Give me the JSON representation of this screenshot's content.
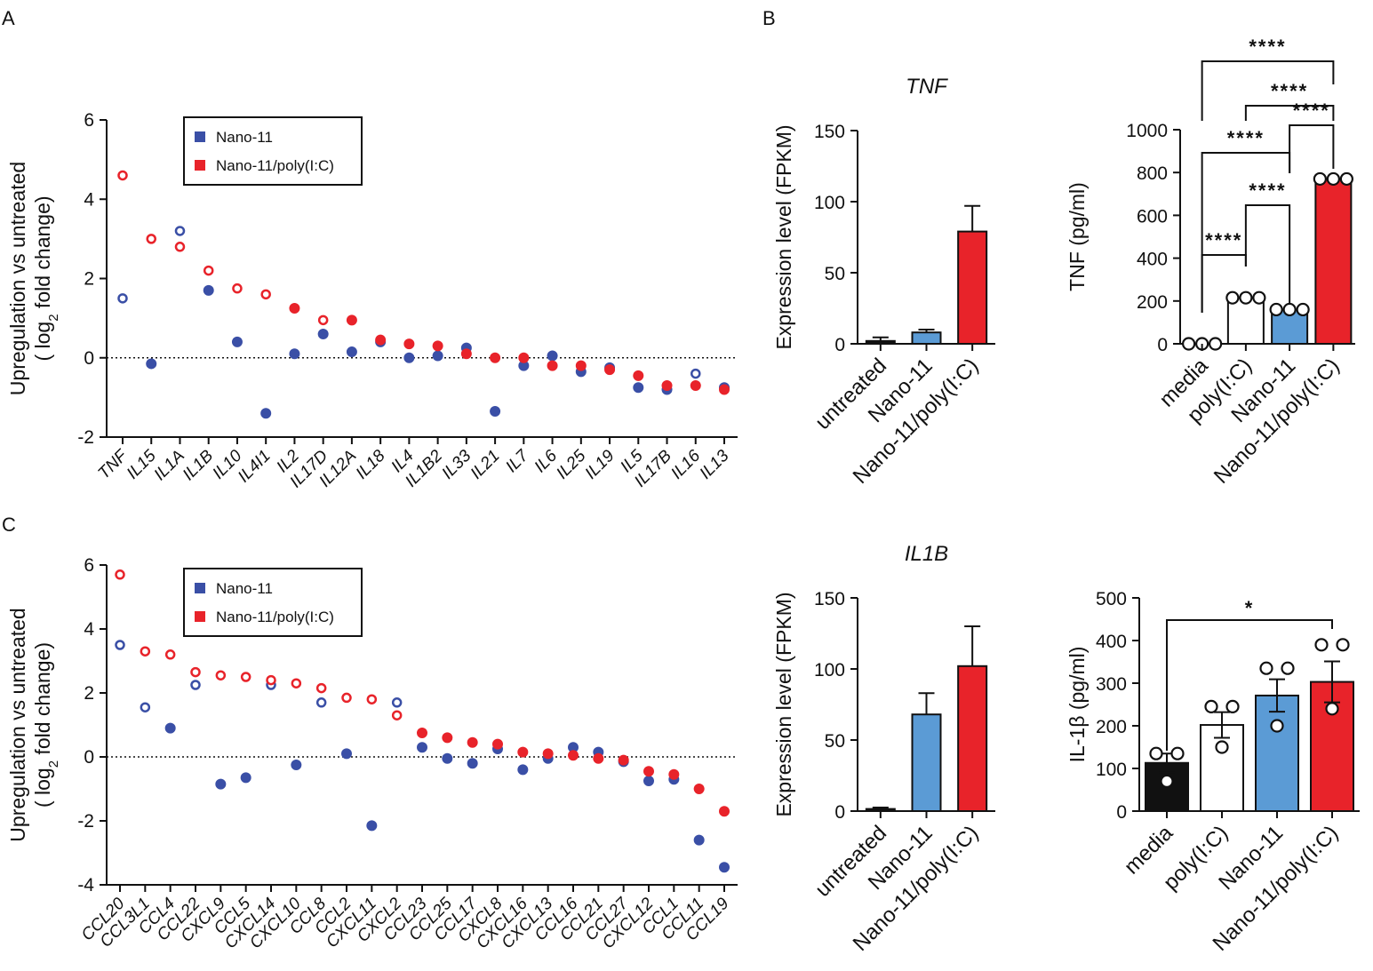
{
  "colors": {
    "blue": "#3a4fa6",
    "red": "#e8232a",
    "light_blue": "#5b9bd5",
    "black": "#111111"
  },
  "panels": {
    "a": "A",
    "b": "B",
    "c": "C"
  },
  "chart_data": [
    {
      "id": "A",
      "type": "scatter",
      "ylabel": "Upregulation vs untreated",
      "ylabel2": "( log2 fold change)",
      "ylim": [
        -2,
        6
      ],
      "yticks": [
        "6",
        "4",
        "2",
        "0",
        "-2"
      ],
      "legend": [
        "Nano-11",
        "Nano-11/poly(I:C)"
      ],
      "categories": [
        "TNF",
        "IL15",
        "IL1A",
        "IL1B",
        "IL10",
        "IL4I1",
        "IL2",
        "IL17D",
        "IL12A",
        "IL18",
        "IL4",
        "IL1B2",
        "IL33",
        "IL21",
        "IL7",
        "IL6",
        "IL25",
        "IL19",
        "IL5",
        "IL17B",
        "IL16",
        "IL13"
      ],
      "series": [
        {
          "name": "Nano-11",
          "values": [
            1.5,
            -0.15,
            3.2,
            1.7,
            0.4,
            -1.4,
            0.1,
            0.6,
            0.15,
            0.4,
            0.0,
            0.05,
            0.25,
            -1.35,
            -0.2,
            0.05,
            -0.35,
            -0.25,
            -0.75,
            -0.8,
            -0.4,
            -0.75
          ],
          "hollow": [
            1,
            0,
            1,
            0,
            0,
            0,
            0,
            0,
            0,
            0,
            0,
            0,
            0,
            0,
            0,
            0,
            0,
            0,
            0,
            0,
            1,
            0
          ]
        },
        {
          "name": "Nano-11/poly(I:C)",
          "values": [
            4.6,
            3.0,
            2.8,
            2.2,
            1.75,
            1.6,
            1.25,
            0.95,
            0.95,
            0.45,
            0.35,
            0.3,
            0.1,
            0.0,
            0.0,
            -0.2,
            -0.2,
            -0.3,
            -0.45,
            -0.7,
            -0.7,
            -0.8
          ],
          "hollow": [
            1,
            1,
            1,
            1,
            1,
            1,
            0,
            1,
            0,
            0,
            0,
            0,
            0,
            0,
            0,
            0,
            0,
            0,
            0,
            0,
            0,
            0
          ]
        }
      ]
    },
    {
      "id": "C",
      "type": "scatter",
      "ylabel": "Upregulation vs untreated",
      "ylabel2": "( log2 fold change)",
      "ylim": [
        -4,
        6
      ],
      "yticks": [
        "6",
        "4",
        "2",
        "0",
        "-2",
        "-4"
      ],
      "legend": [
        "Nano-11",
        "Nano-11/poly(I:C)"
      ],
      "categories": [
        "CCL20",
        "CCL3L1",
        "CCL4",
        "CCL22",
        "CXCL9",
        "CCL5",
        "CXCL14",
        "CXCL10",
        "CCL8",
        "CCL2",
        "CXCL11",
        "CXCL2",
        "CCL23",
        "CCL25",
        "CCL17",
        "CXCL8",
        "CXCL16",
        "CXCL13",
        "CCL16",
        "CCL21",
        "CCL27",
        "CXCL12",
        "CCL1",
        "CCL11",
        "CCL19"
      ],
      "series": [
        {
          "name": "Nano-11",
          "values": [
            3.5,
            1.55,
            0.9,
            2.25,
            -0.85,
            -0.65,
            2.25,
            -0.25,
            1.7,
            0.1,
            -2.15,
            1.7,
            0.3,
            -0.05,
            -0.2,
            0.25,
            -0.4,
            -0.05,
            0.3,
            0.15,
            -0.15,
            -0.75,
            -0.7,
            -2.6,
            -3.45
          ],
          "hollow": [
            1,
            1,
            0,
            1,
            0,
            0,
            1,
            0,
            1,
            0,
            0,
            1,
            0,
            0,
            0,
            0,
            0,
            0,
            0,
            0,
            0,
            0,
            0,
            0,
            0
          ]
        },
        {
          "name": "Nano-11/poly(I:C)",
          "values": [
            5.7,
            3.3,
            3.2,
            2.65,
            2.55,
            2.5,
            2.4,
            2.3,
            2.15,
            1.85,
            1.8,
            1.3,
            0.75,
            0.6,
            0.45,
            0.4,
            0.15,
            0.1,
            0.05,
            -0.05,
            -0.1,
            -0.45,
            -0.55,
            -1.0,
            -1.7
          ],
          "hollow": [
            1,
            1,
            1,
            1,
            1,
            1,
            1,
            1,
            1,
            1,
            1,
            1,
            0,
            0,
            0,
            0,
            0,
            0,
            0,
            0,
            0,
            0,
            0,
            0,
            0
          ]
        }
      ]
    },
    {
      "id": "B-TNF-FPKM",
      "type": "bar",
      "title": "TNF",
      "ylabel": "Expression level (FPKM)",
      "ylim": [
        0,
        150
      ],
      "yticks": [
        "150",
        "100",
        "50",
        "0"
      ],
      "categories": [
        "untreated",
        "Nano-11",
        "Nano-11/poly(I:C)"
      ],
      "values": [
        2,
        8,
        79
      ],
      "errors": [
        2.5,
        2,
        18
      ],
      "colors": [
        "#111111",
        "#5b9bd5",
        "#e8232a"
      ]
    },
    {
      "id": "B-TNF-pgml",
      "type": "bar",
      "ylabel": "TNF (pg/ml)",
      "ylim": [
        0,
        1000
      ],
      "yticks": [
        "1000",
        "800",
        "600",
        "400",
        "200",
        "0"
      ],
      "categories": [
        "media",
        "poly(I:C)",
        "Nano-11",
        "Nano-11/poly(I:C)"
      ],
      "values": [
        0,
        215,
        158,
        770
      ],
      "points": [
        [
          0,
          0,
          0
        ],
        [
          215,
          215,
          215
        ],
        [
          160,
          160,
          160
        ],
        [
          770,
          770,
          770
        ]
      ],
      "colors": [
        "#ffffff",
        "#ffffff",
        "#5b9bd5",
        "#e8232a"
      ],
      "significance": [
        "****",
        "****",
        "****",
        "****",
        "****",
        "****"
      ]
    },
    {
      "id": "B-IL1B-FPKM",
      "type": "bar",
      "title": "IL1B",
      "ylabel": "Expression level (FPKM)",
      "ylim": [
        0,
        150
      ],
      "yticks": [
        "150",
        "100",
        "50",
        "0"
      ],
      "categories": [
        "untreated",
        "Nano-11",
        "Nano-11/poly(I:C)"
      ],
      "values": [
        1.5,
        68,
        102
      ],
      "errors": [
        1,
        15,
        28
      ],
      "colors": [
        "#111111",
        "#5b9bd5",
        "#e8232a"
      ]
    },
    {
      "id": "B-IL1B-pgml",
      "type": "bar",
      "ylabel": "IL-1β (pg/ml)",
      "ylim": [
        0,
        500
      ],
      "yticks": [
        "500",
        "400",
        "300",
        "200",
        "100",
        "0"
      ],
      "categories": [
        "media",
        "poly(I:C)",
        "Nano-11",
        "Nano-11/poly(I:C)"
      ],
      "values": [
        113,
        202,
        271,
        303
      ],
      "errors": [
        22,
        30,
        38,
        48
      ],
      "points": [
        [
          135,
          135,
          70
        ],
        [
          245,
          245,
          150
        ],
        [
          335,
          335,
          200
        ],
        [
          390,
          390,
          240
        ]
      ],
      "colors": [
        "#111111",
        "#ffffff",
        "#5b9bd5",
        "#e8232a"
      ],
      "significance": [
        "*"
      ]
    }
  ]
}
